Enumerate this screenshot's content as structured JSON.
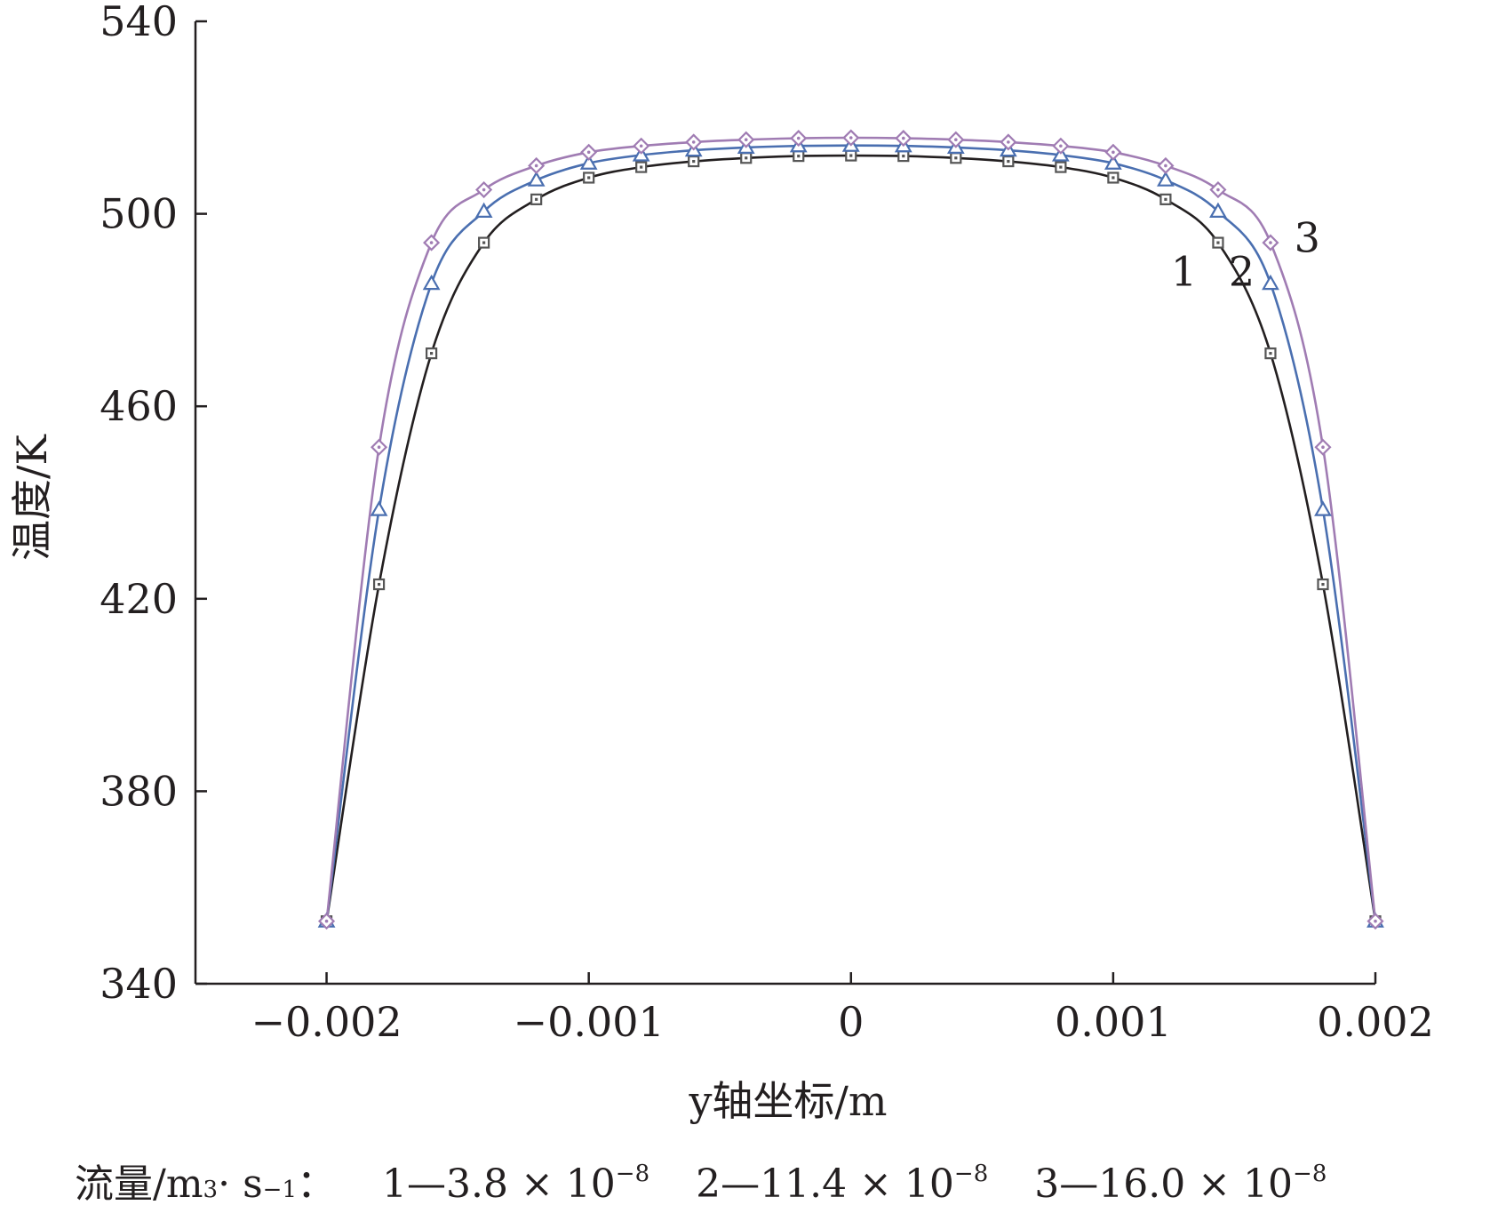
{
  "chart_data": {
    "type": "line",
    "xlabel": "y轴坐标/m",
    "ylabel": "温度/K",
    "xlim": [
      -0.0025,
      0.002
    ],
    "ylim": [
      340,
      540
    ],
    "xticks": [
      -0.002,
      -0.001,
      0,
      0.001,
      0.002
    ],
    "xtick_labels": [
      "−0.002",
      "−0.001",
      "0",
      "0.001",
      "0.002"
    ],
    "yticks": [
      340,
      380,
      420,
      460,
      500,
      540
    ],
    "ytick_labels": [
      "340",
      "380",
      "420",
      "460",
      "500",
      "540"
    ],
    "grid": false,
    "x": [
      -0.002,
      -0.0018,
      -0.0016,
      -0.0014,
      -0.0012,
      -0.001,
      -0.0008,
      -0.0006,
      -0.0004,
      -0.0002,
      0,
      0.0002,
      0.0004,
      0.0006,
      0.0008,
      0.001,
      0.0012,
      0.0014,
      0.0016,
      0.0018,
      0.002
    ],
    "series": [
      {
        "name": "1",
        "color": "#231f20",
        "marker_color": "#555555",
        "marker": "square",
        "values": [
          353,
          423,
          471,
          494,
          503,
          507.5,
          509.7,
          510.9,
          511.6,
          512.0,
          512.1,
          512.0,
          511.6,
          510.9,
          509.7,
          507.5,
          503,
          494,
          471,
          423,
          353
        ]
      },
      {
        "name": "2",
        "color": "#4a6fb0",
        "marker_color": "#4a6fb0",
        "marker": "triangle",
        "values": [
          353,
          438.5,
          485.5,
          500.5,
          507,
          510.5,
          512.2,
          513.2,
          513.8,
          514.1,
          514.2,
          514.1,
          513.8,
          513.2,
          512.2,
          510.5,
          507,
          500.5,
          485.5,
          438.5,
          353
        ]
      },
      {
        "name": "3",
        "color": "#a07cb3",
        "marker_color": "#a07cb3",
        "marker": "diamond",
        "values": [
          353,
          451.5,
          494,
          505,
          510,
          512.8,
          514.1,
          514.9,
          515.4,
          515.7,
          515.8,
          515.7,
          515.4,
          514.9,
          514.1,
          512.8,
          510,
          505,
          494,
          451.5,
          353
        ]
      }
    ],
    "curve_labels": [
      {
        "text": "1",
        "x": 0.00127,
        "y": 488
      },
      {
        "text": "2",
        "x": 0.00149,
        "y": 488
      },
      {
        "text": "3",
        "x": 0.00174,
        "y": 495
      }
    ]
  },
  "caption": {
    "prefix": "流量/m",
    "prefix_sup": "3",
    "middle": " · s",
    "middle_sup": "−1",
    "colon": "：",
    "items": [
      {
        "lead": "1—3.8 × 10",
        "exp": "−8"
      },
      {
        "lead": "2—11.4 × 10",
        "exp": "−8"
      },
      {
        "lead": "3—16.0 × 10",
        "exp": "−8"
      }
    ]
  }
}
